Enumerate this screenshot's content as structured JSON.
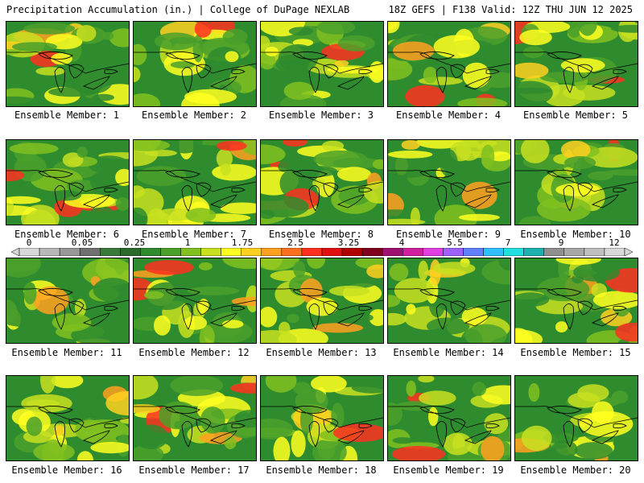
{
  "header": {
    "left": "Precipitation Accumulation (in.) | College of DuPage NEXLAB",
    "right": "18Z GEFS | F138 Valid: 12Z THU JUN 12 2025"
  },
  "members": [
    {
      "label": "Ensemble Member: 1"
    },
    {
      "label": "Ensemble Member: 2"
    },
    {
      "label": "Ensemble Member: 3"
    },
    {
      "label": "Ensemble Member: 4"
    },
    {
      "label": "Ensemble Member: 5"
    },
    {
      "label": "Ensemble Member: 6"
    },
    {
      "label": "Ensemble Member: 7"
    },
    {
      "label": "Ensemble Member: 8"
    },
    {
      "label": "Ensemble Member: 9"
    },
    {
      "label": "Ensemble Member: 10"
    },
    {
      "label": "Ensemble Member: 11"
    },
    {
      "label": "Ensemble Member: 12"
    },
    {
      "label": "Ensemble Member: 13"
    },
    {
      "label": "Ensemble Member: 14"
    },
    {
      "label": "Ensemble Member: 15"
    },
    {
      "label": "Ensemble Member: 16"
    },
    {
      "label": "Ensemble Member: 17"
    },
    {
      "label": "Ensemble Member: 18"
    },
    {
      "label": "Ensemble Member: 19"
    },
    {
      "label": "Ensemble Member: 20"
    }
  ],
  "colorbar": {
    "tick_labels": [
      "0",
      "0.05",
      "0.25",
      "1",
      "1.75",
      "2.5",
      "3.25",
      "4",
      "5.5",
      "7",
      "9",
      "12"
    ],
    "colors": [
      "#d8d8d8",
      "#b8b8b8",
      "#989898",
      "#707070",
      "#3a7a3a",
      "#2a6a2a",
      "#2e8b2e",
      "#4aa02a",
      "#80c020",
      "#c8e020",
      "#ffff20",
      "#ffd020",
      "#ffa020",
      "#ff7020",
      "#ff3020",
      "#e01010",
      "#b00000",
      "#800020",
      "#a01070",
      "#d020a0",
      "#e040e0",
      "#a060ff",
      "#6080ff",
      "#30c0ff",
      "#20e0e0",
      "#20b0b0",
      "#909090",
      "#a8a8a8",
      "#c0c0c0",
      "#d8d8d8"
    ]
  }
}
